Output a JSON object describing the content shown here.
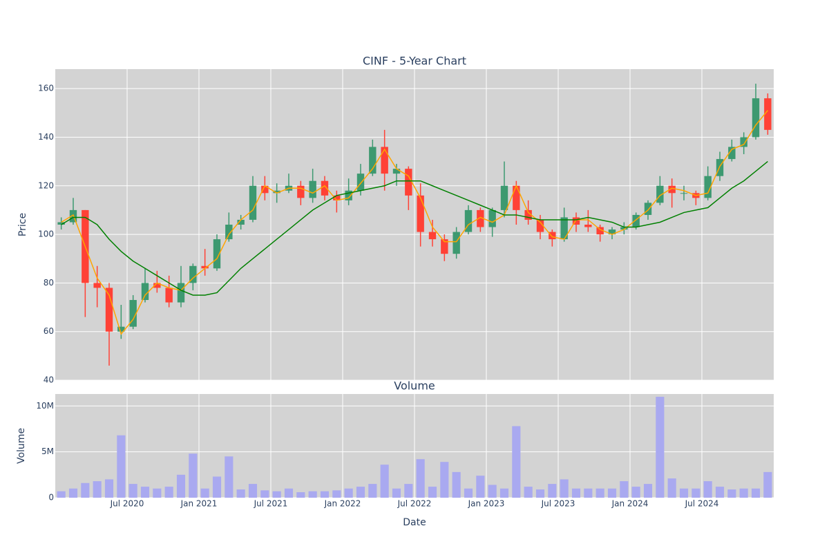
{
  "chart_data": [
    {
      "type": "candlestick",
      "title": "CINF - 5-Year Chart",
      "ylabel": "Price",
      "x": [
        "2020-01",
        "2020-02",
        "2020-03",
        "2020-04",
        "2020-05",
        "2020-06",
        "2020-07",
        "2020-08",
        "2020-09",
        "2020-10",
        "2020-11",
        "2020-12",
        "2021-01",
        "2021-02",
        "2021-03",
        "2021-04",
        "2021-05",
        "2021-06",
        "2021-07",
        "2021-08",
        "2021-09",
        "2021-10",
        "2021-11",
        "2021-12",
        "2022-01",
        "2022-02",
        "2022-03",
        "2022-04",
        "2022-05",
        "2022-06",
        "2022-07",
        "2022-08",
        "2022-09",
        "2022-10",
        "2022-11",
        "2022-12",
        "2023-01",
        "2023-02",
        "2023-03",
        "2023-04",
        "2023-05",
        "2023-06",
        "2023-07",
        "2023-08",
        "2023-09",
        "2023-10",
        "2023-11",
        "2023-12",
        "2024-01",
        "2024-02",
        "2024-03",
        "2024-04",
        "2024-05",
        "2024-06",
        "2024-07",
        "2024-08",
        "2024-09",
        "2024-10",
        "2024-11",
        "2024-12"
      ],
      "xlim": [
        "2020-01",
        "2025-01"
      ],
      "open": [
        104,
        105,
        110,
        80,
        78,
        60,
        62,
        73,
        80,
        78,
        72,
        80,
        87,
        86,
        98,
        104,
        106,
        120,
        117,
        118,
        120,
        115,
        122,
        116,
        114,
        118,
        125,
        136,
        125,
        127,
        116,
        101,
        98,
        92,
        101,
        110,
        103,
        110,
        120,
        110,
        106,
        101,
        98,
        107,
        104,
        103,
        100,
        102,
        103,
        108,
        113,
        120,
        117,
        117,
        115,
        124,
        131,
        136,
        140,
        156
      ],
      "high": [
        107,
        115,
        110,
        87,
        80,
        71,
        75,
        86,
        85,
        83,
        87,
        88,
        94,
        100,
        109,
        108,
        124,
        124,
        121,
        125,
        122,
        127,
        124,
        118,
        123,
        129,
        139,
        143,
        129,
        128,
        121,
        106,
        100,
        103,
        112,
        111,
        111,
        130,
        122,
        114,
        108,
        102,
        111,
        109,
        110,
        104,
        103,
        105,
        109,
        114,
        124,
        123,
        120,
        118,
        128,
        134,
        139,
        142,
        162,
        158
      ],
      "low": [
        102,
        104,
        66,
        70,
        46,
        57,
        61,
        72,
        76,
        70,
        70,
        77,
        83,
        85,
        97,
        102,
        105,
        114,
        113,
        117,
        112,
        113,
        114,
        109,
        112,
        116,
        124,
        118,
        120,
        110,
        95,
        95,
        89,
        90,
        100,
        101,
        99,
        107,
        104,
        104,
        98,
        95,
        97,
        101,
        101,
        97,
        98,
        100,
        102,
        106,
        112,
        111,
        114,
        112,
        114,
        122,
        130,
        133,
        139,
        141
      ],
      "close": [
        105,
        110,
        80,
        78,
        60,
        62,
        73,
        80,
        78,
        72,
        80,
        87,
        86,
        98,
        104,
        106,
        120,
        117,
        118,
        120,
        115,
        122,
        116,
        114,
        118,
        125,
        136,
        125,
        127,
        116,
        101,
        98,
        92,
        101,
        110,
        103,
        110,
        120,
        110,
        106,
        101,
        98,
        107,
        104,
        103,
        100,
        102,
        103,
        108,
        113,
        120,
        117,
        117,
        115,
        124,
        131,
        136,
        140,
        156,
        143
      ],
      "increasing_color": "#3d9970",
      "decreasing_color": "#ff4136",
      "series": [
        {
          "color": "orange",
          "values": [
            105,
            108,
            95,
            82,
            75,
            59,
            65,
            75,
            80,
            78,
            77,
            82,
            86,
            90,
            100,
            106,
            110,
            120,
            117,
            119,
            119,
            117,
            120,
            114,
            115,
            121,
            127,
            135,
            127,
            124,
            115,
            103,
            97,
            97,
            104,
            107,
            105,
            108,
            120,
            109,
            105,
            99,
            98,
            106,
            106,
            102,
            100,
            102,
            106,
            110,
            116,
            119,
            118,
            116,
            117,
            128,
            135,
            137,
            145,
            151
          ]
        },
        {
          "color": "green",
          "values": [
            104,
            107,
            107,
            104,
            98,
            93,
            89,
            86,
            83,
            80,
            77,
            75,
            75,
            76,
            81,
            86,
            90,
            94,
            98,
            102,
            106,
            110,
            113,
            116,
            117,
            118,
            119,
            120,
            122,
            122,
            122,
            120,
            118,
            116,
            114,
            112,
            110,
            108,
            108,
            107,
            106,
            106,
            106,
            106,
            107,
            106,
            105,
            103,
            103,
            104,
            105,
            107,
            109,
            110,
            111,
            115,
            119,
            122,
            126,
            130
          ]
        }
      ],
      "ylim": [
        40,
        168
      ],
      "yticks": [
        40,
        60,
        80,
        100,
        120,
        140,
        160
      ],
      "grid": true
    },
    {
      "type": "bar",
      "title": "Volume",
      "ylabel": "Volume",
      "xlabel": "Date",
      "color": "#a9a9f0",
      "values": [
        700000,
        1000000,
        1600000,
        1800000,
        2000000,
        6800000,
        1500000,
        1200000,
        1000000,
        1200000,
        2500000,
        4800000,
        1000000,
        2300000,
        4500000,
        900000,
        1500000,
        800000,
        700000,
        1000000,
        600000,
        700000,
        700000,
        800000,
        1000000,
        1200000,
        1500000,
        3600000,
        1000000,
        1500000,
        4200000,
        1200000,
        3900000,
        2800000,
        1000000,
        2400000,
        1400000,
        1000000,
        7800000,
        1200000,
        900000,
        1500000,
        2000000,
        1000000,
        1000000,
        1000000,
        1000000,
        1800000,
        1200000,
        1500000,
        11000000,
        2100000,
        1000000,
        1000000,
        1800000,
        1200000,
        900000,
        1000000,
        1000000,
        2800000
      ],
      "ylim": [
        0,
        11300000
      ],
      "yticks": [
        0,
        {
          "value": 5000000,
          "label": "5M"
        },
        {
          "value": 10000000,
          "label": "10M"
        }
      ],
      "xticks": [
        {
          "value": "2020-07",
          "label": "Jul 2020"
        },
        {
          "value": "2021-01",
          "label": "Jan 2021"
        },
        {
          "value": "2021-07",
          "label": "Jul 2021"
        },
        {
          "value": "2022-01",
          "label": "Jan 2022"
        },
        {
          "value": "2022-07",
          "label": "Jul 2022"
        },
        {
          "value": "2023-01",
          "label": "Jan 2023"
        },
        {
          "value": "2023-07",
          "label": "Jul 2023"
        },
        {
          "value": "2024-01",
          "label": "Jan 2024"
        },
        {
          "value": "2024-07",
          "label": "Jul 2024"
        }
      ],
      "grid": true
    }
  ]
}
